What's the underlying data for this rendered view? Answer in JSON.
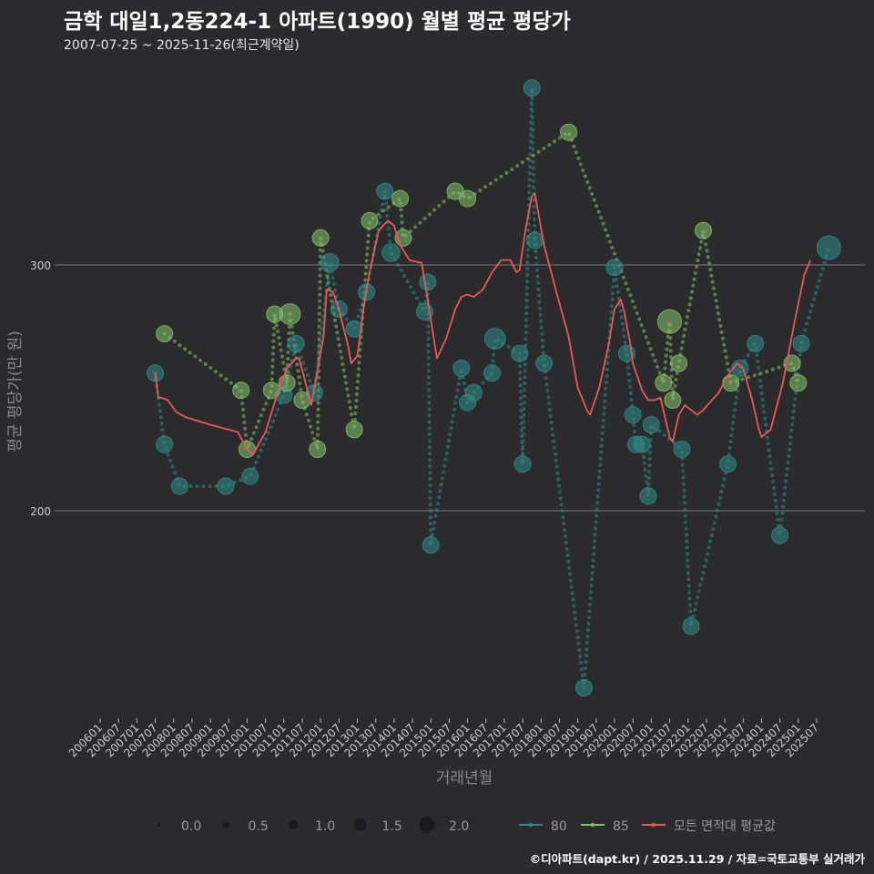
{
  "title": "금학 대일1,2동224-1 아파트(1990) 월별 평균 평당가",
  "subtitle": "2007-07-25 ~ 2025-11-26(최근계약일)",
  "caption": "©디아파트(dapt.kr) / 2025.11.29 / 자료=국토교통부 실거래가",
  "chart_data": {
    "type": "scatter",
    "xlabel": "거래년월",
    "ylabel": "평균 평당가(만 원)",
    "ylim": [
      125,
      380
    ],
    "yticks": [
      200,
      300
    ],
    "grid": true,
    "xticks": [
      "200601",
      "200607",
      "200701",
      "200707",
      "200801",
      "200807",
      "200901",
      "200907",
      "201001",
      "201007",
      "201101",
      "201107",
      "201201",
      "201207",
      "201301",
      "201307",
      "201401",
      "201407",
      "201501",
      "201507",
      "201601",
      "201607",
      "201701",
      "201707",
      "201801",
      "201807",
      "201901",
      "201907",
      "202001",
      "202007",
      "202101",
      "202107",
      "202201",
      "202207",
      "202301",
      "202307",
      "202401",
      "202407",
      "202501",
      "202507"
    ],
    "size_legend": {
      "values": [
        0.0,
        0.5,
        1.0,
        1.5,
        2.0
      ],
      "labels": [
        "0.0",
        "0.5",
        "1.0",
        "1.5",
        "2.0"
      ]
    },
    "legend_position": "bottom",
    "series": [
      {
        "name": "80",
        "color": "#2f8c8a",
        "points": [
          [
            "2007-07",
            256,
            1.0
          ],
          [
            "2007-10",
            227,
            1.0
          ],
          [
            "2008-03",
            210,
            1.0
          ],
          [
            "2009-06",
            210,
            1.0
          ],
          [
            "2010-02",
            214,
            1.0
          ],
          [
            "2011-01",
            247,
            1.0
          ],
          [
            "2011-05",
            268,
            1.0
          ],
          [
            "2011-11",
            248,
            1.0
          ],
          [
            "2012-04",
            301,
            1.2
          ],
          [
            "2012-07",
            282,
            1.0
          ],
          [
            "2012-12",
            274,
            1.0
          ],
          [
            "2013-04",
            289,
            1.0
          ],
          [
            "2013-10",
            330,
            1.0
          ],
          [
            "2013-12",
            305,
            1.2
          ],
          [
            "2014-11",
            281,
            1.0
          ],
          [
            "2014-12",
            293,
            1.0
          ],
          [
            "2015-01",
            186,
            1.0
          ],
          [
            "2015-11",
            258,
            1.0
          ],
          [
            "2016-01",
            244,
            1.0
          ],
          [
            "2016-03",
            248,
            1.0
          ],
          [
            "2016-09",
            256,
            1.0
          ],
          [
            "2016-10",
            270,
            1.6
          ],
          [
            "2017-06",
            264,
            1.0
          ],
          [
            "2017-07",
            219,
            1.0
          ],
          [
            "2017-10",
            372,
            1.0
          ],
          [
            "2017-11",
            310,
            1.0
          ],
          [
            "2018-02",
            260,
            1.0
          ],
          [
            "2019-03",
            128,
            1.0
          ],
          [
            "2020-01",
            299,
            1.0
          ],
          [
            "2020-05",
            264,
            1.0
          ],
          [
            "2020-07",
            239,
            1.0
          ],
          [
            "2020-08",
            227,
            1.0
          ],
          [
            "2020-10",
            227,
            1.0
          ],
          [
            "2020-12",
            206,
            1.0
          ],
          [
            "2021-01",
            235,
            1.0
          ],
          [
            "2021-11",
            225,
            1.0
          ],
          [
            "2022-02",
            153,
            1.0
          ],
          [
            "2023-02",
            219,
            1.0
          ],
          [
            "2023-06",
            258,
            1.0
          ],
          [
            "2023-11",
            268,
            1.0
          ],
          [
            "2024-07",
            190,
            1.0
          ],
          [
            "2025-02",
            268,
            1.0
          ],
          [
            "2025-11",
            307,
            2.0
          ]
        ]
      },
      {
        "name": "85",
        "color": "#86c26a",
        "points": [
          [
            "2007-10",
            272,
            1.0
          ],
          [
            "2009-11",
            249,
            1.0
          ],
          [
            "2010-01",
            225,
            1.0
          ],
          [
            "2010-09",
            249,
            1.0
          ],
          [
            "2010-10",
            280,
            1.0
          ],
          [
            "2011-02",
            252,
            1.0
          ],
          [
            "2011-03",
            280,
            1.6
          ],
          [
            "2011-07",
            245,
            1.0
          ],
          [
            "2011-12",
            225,
            1.0
          ],
          [
            "2012-01",
            311,
            1.0
          ],
          [
            "2012-12",
            233,
            1.0
          ],
          [
            "2013-05",
            318,
            1.0
          ],
          [
            "2014-03",
            327,
            1.0
          ],
          [
            "2014-04",
            311,
            1.0
          ],
          [
            "2015-09",
            330,
            1.0
          ],
          [
            "2016-01",
            327,
            1.0
          ],
          [
            "2018-10",
            354,
            1.0
          ],
          [
            "2021-05",
            252,
            1.0
          ],
          [
            "2021-07",
            277,
            2.0
          ],
          [
            "2021-08",
            245,
            1.0
          ],
          [
            "2021-10",
            260,
            1.0
          ],
          [
            "2022-06",
            314,
            1.0
          ],
          [
            "2023-03",
            252,
            1.0
          ],
          [
            "2024-11",
            260,
            1.0
          ],
          [
            "2025-01",
            252,
            1.0
          ]
        ]
      },
      {
        "name": "모든 면적대 평균값",
        "color": "#e8585a",
        "type": "line",
        "points": [
          [
            "2007-07",
            256
          ],
          [
            "2007-08",
            246
          ],
          [
            "2007-09",
            246
          ],
          [
            "2007-11",
            245
          ],
          [
            "2008-02",
            240
          ],
          [
            "2008-05",
            238
          ],
          [
            "2009-01",
            235
          ],
          [
            "2009-10",
            232
          ],
          [
            "2010-01",
            225
          ],
          [
            "2010-03",
            223
          ],
          [
            "2010-07",
            232
          ],
          [
            "2010-11",
            248
          ],
          [
            "2011-02",
            258
          ],
          [
            "2011-05",
            262
          ],
          [
            "2011-06",
            262
          ],
          [
            "2011-10",
            243
          ],
          [
            "2012-02",
            271
          ],
          [
            "2012-03",
            290
          ],
          [
            "2012-05",
            289
          ],
          [
            "2012-07",
            282
          ],
          [
            "2012-10",
            267
          ],
          [
            "2012-11",
            260
          ],
          [
            "2013-01",
            263
          ],
          [
            "2013-03",
            282
          ],
          [
            "2013-05",
            297
          ],
          [
            "2013-08",
            314
          ],
          [
            "2013-11",
            318
          ],
          [
            "2014-01",
            316
          ],
          [
            "2014-03",
            308
          ],
          [
            "2014-06",
            302
          ],
          [
            "2014-09",
            301
          ],
          [
            "2014-10",
            301
          ],
          [
            "2014-12",
            286
          ],
          [
            "2015-03",
            262
          ],
          [
            "2015-06",
            270
          ],
          [
            "2015-09",
            282
          ],
          [
            "2015-11",
            287
          ],
          [
            "2016-01",
            288
          ],
          [
            "2016-03",
            287
          ],
          [
            "2016-06",
            290
          ],
          [
            "2016-09",
            297
          ],
          [
            "2016-12",
            302
          ],
          [
            "2017-03",
            302
          ],
          [
            "2017-05",
            297
          ],
          [
            "2017-06",
            298
          ],
          [
            "2017-08",
            315
          ],
          [
            "2017-10",
            328
          ],
          [
            "2017-11",
            329
          ],
          [
            "2017-12",
            322
          ],
          [
            "2018-02",
            308
          ],
          [
            "2018-06",
            289
          ],
          [
            "2018-10",
            271
          ],
          [
            "2019-01",
            250
          ],
          [
            "2019-04",
            241
          ],
          [
            "2019-05",
            239
          ],
          [
            "2019-08",
            250
          ],
          [
            "2019-11",
            267
          ],
          [
            "2020-01",
            282
          ],
          [
            "2020-03",
            286
          ],
          [
            "2020-04",
            282
          ],
          [
            "2020-06",
            269
          ],
          [
            "2020-07",
            260
          ],
          [
            "2020-10",
            249
          ],
          [
            "2020-12",
            245
          ],
          [
            "2021-02",
            245
          ],
          [
            "2021-04",
            246
          ],
          [
            "2021-07",
            230
          ],
          [
            "2021-08",
            228
          ],
          [
            "2021-10",
            239
          ],
          [
            "2021-12",
            243
          ],
          [
            "2022-02",
            241
          ],
          [
            "2022-04",
            239
          ],
          [
            "2022-06",
            241
          ],
          [
            "2022-11",
            248
          ],
          [
            "2023-02",
            255
          ],
          [
            "2023-05",
            260
          ],
          [
            "2023-07",
            258
          ],
          [
            "2023-10",
            245
          ],
          [
            "2023-12",
            234
          ],
          [
            "2024-01",
            230
          ],
          [
            "2024-04",
            233
          ],
          [
            "2024-08",
            252
          ],
          [
            "2024-12",
            278
          ],
          [
            "2025-03",
            296
          ],
          [
            "2025-05",
            302
          ]
        ]
      }
    ]
  }
}
